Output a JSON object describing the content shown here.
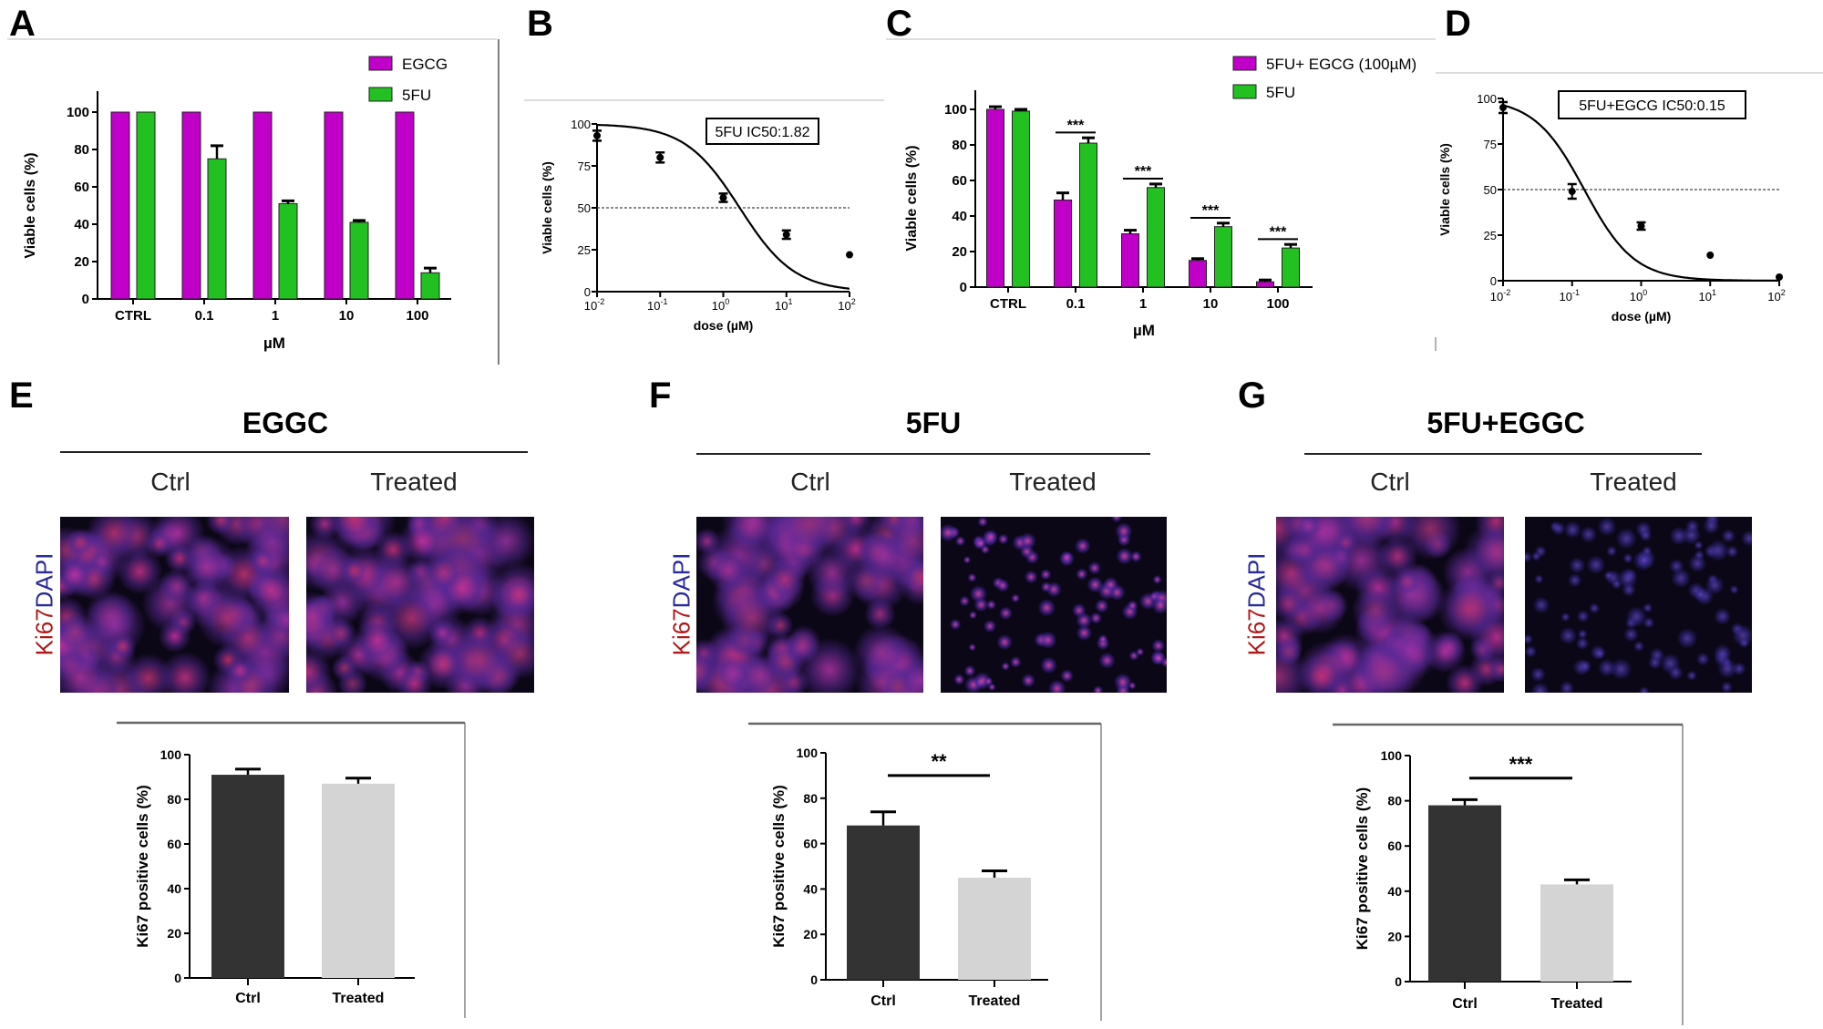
{
  "panels": {
    "A": "A",
    "B": "B",
    "C": "C",
    "D": "D",
    "E": "E",
    "F": "F",
    "G": "G"
  },
  "micrographs": {
    "stain_ki67": "Ki67",
    "stain_dapi": "DAPI",
    "E": {
      "title": "EGGC",
      "ctrl": "Ctrl",
      "treated": "Treated"
    },
    "F": {
      "title": "5FU",
      "ctrl": "Ctrl",
      "treated": "Treated"
    },
    "G": {
      "title": "5FU+EGGC",
      "ctrl": "Ctrl",
      "treated": "Treated"
    }
  },
  "colors": {
    "magenta": "#c000c8",
    "green": "#22c020",
    "dark": "#333333",
    "light": "#d4d4d4"
  },
  "chart_data": [
    {
      "id": "A",
      "type": "bar",
      "ylabel": "Viable cells (%)",
      "xlabel": "µM",
      "ylim": [
        0,
        110
      ],
      "yticks": [
        "0",
        "20",
        "40",
        "60",
        "80",
        "100"
      ],
      "categories": [
        "CTRL",
        "0.1",
        "1",
        "10",
        "100"
      ],
      "series": [
        {
          "name": "EGCG",
          "color": "#c000c8",
          "values": [
            100,
            100,
            100,
            100,
            100
          ],
          "errors": [
            0,
            0,
            0,
            0,
            0
          ]
        },
        {
          "name": "5FU",
          "color": "#22c020",
          "values": [
            100,
            75,
            51,
            41,
            14
          ],
          "errors": [
            0,
            7,
            1.5,
            1,
            2.5
          ]
        }
      ],
      "legend": "top-right"
    },
    {
      "id": "B",
      "type": "scatter",
      "ylabel": "Viable cells (%)",
      "xlabel": "dose (µM)",
      "xscale": "log",
      "xlim": [
        0.01,
        100
      ],
      "ylim": [
        0,
        100
      ],
      "yticks": [
        "0",
        "25",
        "50",
        "75",
        "100"
      ],
      "xticks": [
        "10-2",
        "10-1",
        "100",
        "101",
        "102"
      ],
      "annotation": "5FU IC50:1.82",
      "ic50": 1.82,
      "hill": 1,
      "reference_line": 50,
      "points": [
        {
          "x": 0.01,
          "y": 93,
          "err": 3
        },
        {
          "x": 0.1,
          "y": 80,
          "err": 3
        },
        {
          "x": 1,
          "y": 56,
          "err": 2.5
        },
        {
          "x": 10,
          "y": 34,
          "err": 2.5
        },
        {
          "x": 100,
          "y": 22,
          "err": 0
        }
      ]
    },
    {
      "id": "C",
      "type": "bar",
      "ylabel": "Viable cells (%)",
      "xlabel": "µM",
      "ylim": [
        0,
        110
      ],
      "yticks": [
        "0",
        "20",
        "40",
        "60",
        "80",
        "100"
      ],
      "categories": [
        "CTRL",
        "0.1",
        "1",
        "10",
        "100"
      ],
      "series": [
        {
          "name": "5FU+ EGCG (100µM)",
          "color": "#c000c8",
          "values": [
            100,
            49,
            30,
            15,
            3
          ],
          "errors": [
            1.5,
            4,
            2,
            1,
            1
          ]
        },
        {
          "name": "5FU",
          "color": "#22c020",
          "values": [
            99,
            81,
            56,
            34,
            22
          ],
          "errors": [
            1,
            3,
            2,
            2,
            2
          ]
        }
      ],
      "significance": [
        null,
        "***",
        "***",
        "***",
        "***"
      ],
      "legend": "top-right"
    },
    {
      "id": "D",
      "type": "scatter",
      "ylabel": "Viable cells (%)",
      "xlabel": "dose (µM)",
      "xscale": "log",
      "xlim": [
        0.01,
        100
      ],
      "ylim": [
        0,
        100
      ],
      "yticks": [
        "0",
        "25",
        "50",
        "75",
        "100"
      ],
      "xticks": [
        "10-2",
        "10-1",
        "100",
        "101",
        "102"
      ],
      "annotation": "5FU+EGCG IC50:0.15",
      "ic50": 0.15,
      "hill": 1.2,
      "reference_line": 50,
      "points": [
        {
          "x": 0.01,
          "y": 95,
          "err": 3
        },
        {
          "x": 0.1,
          "y": 49,
          "err": 4
        },
        {
          "x": 1,
          "y": 30,
          "err": 2
        },
        {
          "x": 10,
          "y": 14,
          "err": 0
        },
        {
          "x": 100,
          "y": 2,
          "err": 0
        }
      ]
    },
    {
      "id": "E",
      "type": "bar",
      "ylabel": "Ki67 positive cells (%)",
      "ylim": [
        0,
        100
      ],
      "yticks": [
        "0",
        "20",
        "40",
        "60",
        "80",
        "100"
      ],
      "categories": [
        "Ctrl",
        "Treated"
      ],
      "values": [
        91,
        87
      ],
      "errors": [
        2.5,
        2.5
      ],
      "colors": [
        "#333333",
        "#d4d4d4"
      ],
      "significance": null
    },
    {
      "id": "F",
      "type": "bar",
      "ylabel": "Ki67 positive cells (%)",
      "ylim": [
        0,
        100
      ],
      "yticks": [
        "0",
        "20",
        "40",
        "60",
        "80",
        "100"
      ],
      "categories": [
        "Ctrl",
        "Treated"
      ],
      "values": [
        68,
        45
      ],
      "errors": [
        6,
        3
      ],
      "colors": [
        "#333333",
        "#d4d4d4"
      ],
      "significance": "**"
    },
    {
      "id": "G",
      "type": "bar",
      "ylabel": "Ki67 positive cells (%)",
      "ylim": [
        0,
        100
      ],
      "yticks": [
        "0",
        "20",
        "40",
        "60",
        "80",
        "100"
      ],
      "categories": [
        "Ctrl",
        "Treated"
      ],
      "values": [
        78,
        43
      ],
      "errors": [
        2.5,
        2
      ],
      "colors": [
        "#333333",
        "#d4d4d4"
      ],
      "significance": "***"
    }
  ]
}
